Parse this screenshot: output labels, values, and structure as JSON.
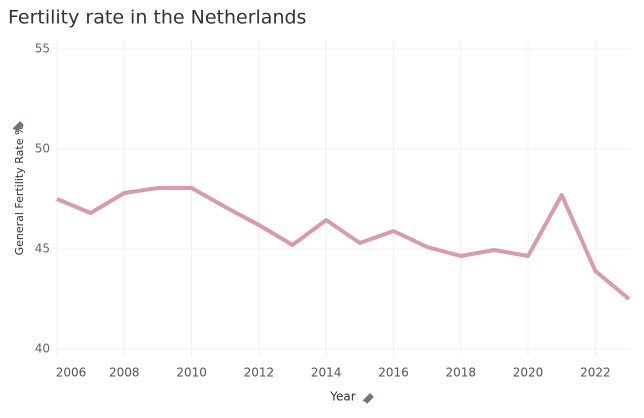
{
  "chart_data": {
    "type": "line",
    "title": "Fertility rate in the Netherlands",
    "x_label": "Year",
    "y_label": "General Fertility Rate %",
    "x": [
      2006,
      2007,
      2008,
      2009,
      2010,
      2011,
      2012,
      2013,
      2014,
      2015,
      2016,
      2017,
      2018,
      2019,
      2020,
      2021,
      2022,
      2023
    ],
    "series": [
      {
        "name": "General Fertility Rate %",
        "color": "#d89ca8",
        "values": [
          47.5,
          46.8,
          47.8,
          48.05,
          48.05,
          47.1,
          46.2,
          45.2,
          46.45,
          45.3,
          45.9,
          45.1,
          44.65,
          44.95,
          44.65,
          47.7,
          43.9,
          42.5
        ]
      }
    ],
    "xlim": [
      2006,
      2023
    ],
    "xticks": [
      2006,
      2008,
      2010,
      2012,
      2014,
      2016,
      2018,
      2020,
      2022
    ],
    "ylim": [
      39.6,
      55.45
    ],
    "yticks": [
      40,
      45,
      50,
      55
    ],
    "grid": true
  }
}
